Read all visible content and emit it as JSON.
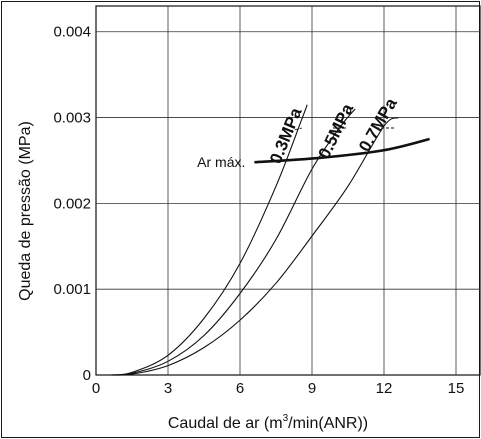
{
  "chart_data": {
    "type": "line",
    "title": "",
    "xlabel": "Caudal de ar (m³/min(ANR))",
    "xlabel_parts": {
      "before": "Caudal de ar (m",
      "sup": "3",
      "after": "/min(ANR))"
    },
    "ylabel": "Queda de pressão (MPa)",
    "xlim": [
      0,
      16
    ],
    "ylim": [
      0,
      0.0043
    ],
    "x_ticks": [
      0,
      3,
      6,
      9,
      12,
      15
    ],
    "y_ticks": [
      {
        "value": 0,
        "label": "0"
      },
      {
        "value": 0.001,
        "label": "0.001"
      },
      {
        "value": 0.002,
        "label": "0.002"
      },
      {
        "value": 0.003,
        "label": "0.003"
      },
      {
        "value": 0.004,
        "label": "0.004"
      }
    ],
    "grid": true,
    "legend": "none",
    "series": [
      {
        "name": "0.3MPa",
        "points": [
          [
            0.6,
            0
          ],
          [
            1.5,
            3e-05
          ],
          [
            3,
            0.00023
          ],
          [
            4.5,
            0.00066
          ],
          [
            6,
            0.0013
          ],
          [
            7.5,
            0.0022
          ],
          [
            8.6,
            0.003
          ],
          [
            8.8,
            0.00315
          ]
        ]
      },
      {
        "name": "0.5MPa",
        "points": [
          [
            0.6,
            0
          ],
          [
            1.5,
            2e-05
          ],
          [
            3,
            0.00016
          ],
          [
            4.5,
            0.00046
          ],
          [
            6,
            0.00095
          ],
          [
            7.5,
            0.00158
          ],
          [
            9,
            0.0024
          ],
          [
            10.2,
            0.0029
          ],
          [
            10.8,
            0.0031
          ]
        ]
      },
      {
        "name": "0.7MPa",
        "points": [
          [
            0.6,
            0
          ],
          [
            1.5,
            1e-05
          ],
          [
            3,
            0.00011
          ],
          [
            4.5,
            0.00032
          ],
          [
            6,
            0.00064
          ],
          [
            7.5,
            0.00107
          ],
          [
            9,
            0.00162
          ],
          [
            10.5,
            0.0022
          ],
          [
            12,
            0.0029
          ],
          [
            12.6,
            0.003
          ]
        ]
      }
    ],
    "max_flow_line": {
      "label": "Ar máx.",
      "points": [
        [
          6.6,
          0.00248
        ],
        [
          9.3,
          0.00253
        ],
        [
          12,
          0.00262
        ],
        [
          13.9,
          0.00275
        ]
      ]
    }
  }
}
